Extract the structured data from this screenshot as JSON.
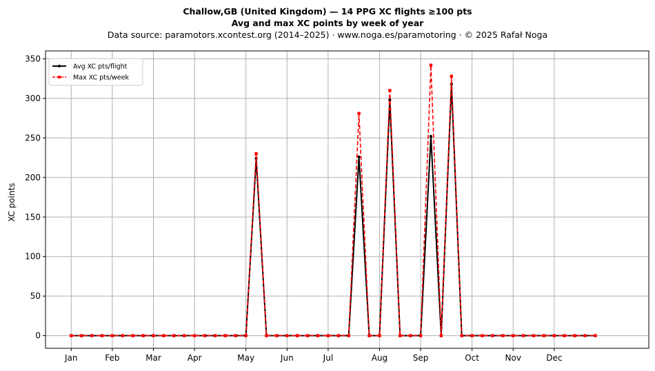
{
  "chart_data": {
    "type": "line",
    "title": "Challow,GB (United Kingdom)  —  14 PPG XC flights ≥100 pts",
    "subtitle": "Avg and max XC points by week of year",
    "source": "Data source: paramotors.xcontest.org (2014–2025)  ·  www.noga.es/paramotoring  ·  © 2025 Rafał Noga",
    "xlabel": "",
    "ylabel": "XC points",
    "ylim": [
      -16,
      360
    ],
    "yticks": [
      0,
      50,
      100,
      150,
      200,
      250,
      300,
      350
    ],
    "month_ticks": [
      {
        "label": "Jan",
        "week": 1
      },
      {
        "label": "Feb",
        "week": 5
      },
      {
        "label": "Mar",
        "week": 9
      },
      {
        "label": "Apr",
        "week": 13
      },
      {
        "label": "May",
        "week": 18
      },
      {
        "label": "Jun",
        "week": 22
      },
      {
        "label": "Jul",
        "week": 26
      },
      {
        "label": "Aug",
        "week": 31
      },
      {
        "label": "Sep",
        "week": 35
      },
      {
        "label": "Oct",
        "week": 40
      },
      {
        "label": "Nov",
        "week": 44
      },
      {
        "label": "Dec",
        "week": 48
      }
    ],
    "grid": true,
    "legend_position": "upper-left",
    "x": [
      1,
      2,
      3,
      4,
      5,
      6,
      7,
      8,
      9,
      10,
      11,
      12,
      13,
      14,
      15,
      16,
      17,
      18,
      19,
      20,
      21,
      22,
      23,
      24,
      25,
      26,
      27,
      28,
      29,
      30,
      31,
      32,
      33,
      34,
      35,
      36,
      37,
      38,
      39,
      40,
      41,
      42,
      43,
      44,
      45,
      46,
      47,
      48,
      49,
      50,
      51,
      52
    ],
    "series": [
      {
        "name": "Avg XC pts/flight",
        "color": "#000000",
        "style": "solid",
        "marker": "circle",
        "values": [
          0,
          0,
          0,
          0,
          0,
          0,
          0,
          0,
          0,
          0,
          0,
          0,
          0,
          0,
          0,
          0,
          0,
          0,
          224,
          0,
          0,
          0,
          0,
          0,
          0,
          0,
          0,
          0,
          226,
          0,
          0,
          298,
          0,
          0,
          0,
          252,
          0,
          318,
          0,
          0,
          0,
          0,
          0,
          0,
          0,
          0,
          0,
          0,
          0,
          0,
          0,
          0
        ]
      },
      {
        "name": "Max XC pts/week",
        "color": "#ff0000",
        "style": "dashed",
        "marker": "square",
        "values": [
          0,
          0,
          0,
          0,
          0,
          0,
          0,
          0,
          0,
          0,
          0,
          0,
          0,
          0,
          0,
          0,
          0,
          0,
          230,
          0,
          0,
          0,
          0,
          0,
          0,
          0,
          0,
          0,
          281,
          0,
          0,
          310,
          0,
          0,
          0,
          342,
          0,
          328,
          0,
          0,
          0,
          0,
          0,
          0,
          0,
          0,
          0,
          0,
          0,
          0,
          0,
          0
        ]
      }
    ]
  }
}
